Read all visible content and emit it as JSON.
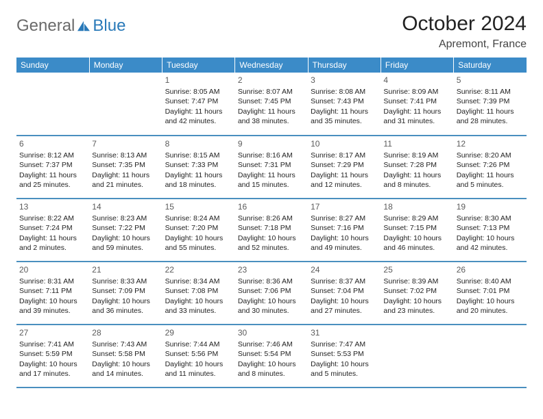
{
  "brand": {
    "general": "General",
    "blue": "Blue"
  },
  "title": "October 2024",
  "location": "Apremont, France",
  "day_headers": [
    "Sunday",
    "Monday",
    "Tuesday",
    "Wednesday",
    "Thursday",
    "Friday",
    "Saturday"
  ],
  "colors": {
    "header_bg": "#3b8bc8",
    "row_divider": "#4a8fbf",
    "logo_blue": "#2a7ab9",
    "logo_gray": "#6a6a6a"
  },
  "weeks": [
    [
      null,
      null,
      {
        "n": "1",
        "sr": "8:05 AM",
        "ss": "7:47 PM",
        "dl": "11 hours and 42 minutes."
      },
      {
        "n": "2",
        "sr": "8:07 AM",
        "ss": "7:45 PM",
        "dl": "11 hours and 38 minutes."
      },
      {
        "n": "3",
        "sr": "8:08 AM",
        "ss": "7:43 PM",
        "dl": "11 hours and 35 minutes."
      },
      {
        "n": "4",
        "sr": "8:09 AM",
        "ss": "7:41 PM",
        "dl": "11 hours and 31 minutes."
      },
      {
        "n": "5",
        "sr": "8:11 AM",
        "ss": "7:39 PM",
        "dl": "11 hours and 28 minutes."
      }
    ],
    [
      {
        "n": "6",
        "sr": "8:12 AM",
        "ss": "7:37 PM",
        "dl": "11 hours and 25 minutes."
      },
      {
        "n": "7",
        "sr": "8:13 AM",
        "ss": "7:35 PM",
        "dl": "11 hours and 21 minutes."
      },
      {
        "n": "8",
        "sr": "8:15 AM",
        "ss": "7:33 PM",
        "dl": "11 hours and 18 minutes."
      },
      {
        "n": "9",
        "sr": "8:16 AM",
        "ss": "7:31 PM",
        "dl": "11 hours and 15 minutes."
      },
      {
        "n": "10",
        "sr": "8:17 AM",
        "ss": "7:29 PM",
        "dl": "11 hours and 12 minutes."
      },
      {
        "n": "11",
        "sr": "8:19 AM",
        "ss": "7:28 PM",
        "dl": "11 hours and 8 minutes."
      },
      {
        "n": "12",
        "sr": "8:20 AM",
        "ss": "7:26 PM",
        "dl": "11 hours and 5 minutes."
      }
    ],
    [
      {
        "n": "13",
        "sr": "8:22 AM",
        "ss": "7:24 PM",
        "dl": "11 hours and 2 minutes."
      },
      {
        "n": "14",
        "sr": "8:23 AM",
        "ss": "7:22 PM",
        "dl": "10 hours and 59 minutes."
      },
      {
        "n": "15",
        "sr": "8:24 AM",
        "ss": "7:20 PM",
        "dl": "10 hours and 55 minutes."
      },
      {
        "n": "16",
        "sr": "8:26 AM",
        "ss": "7:18 PM",
        "dl": "10 hours and 52 minutes."
      },
      {
        "n": "17",
        "sr": "8:27 AM",
        "ss": "7:16 PM",
        "dl": "10 hours and 49 minutes."
      },
      {
        "n": "18",
        "sr": "8:29 AM",
        "ss": "7:15 PM",
        "dl": "10 hours and 46 minutes."
      },
      {
        "n": "19",
        "sr": "8:30 AM",
        "ss": "7:13 PM",
        "dl": "10 hours and 42 minutes."
      }
    ],
    [
      {
        "n": "20",
        "sr": "8:31 AM",
        "ss": "7:11 PM",
        "dl": "10 hours and 39 minutes."
      },
      {
        "n": "21",
        "sr": "8:33 AM",
        "ss": "7:09 PM",
        "dl": "10 hours and 36 minutes."
      },
      {
        "n": "22",
        "sr": "8:34 AM",
        "ss": "7:08 PM",
        "dl": "10 hours and 33 minutes."
      },
      {
        "n": "23",
        "sr": "8:36 AM",
        "ss": "7:06 PM",
        "dl": "10 hours and 30 minutes."
      },
      {
        "n": "24",
        "sr": "8:37 AM",
        "ss": "7:04 PM",
        "dl": "10 hours and 27 minutes."
      },
      {
        "n": "25",
        "sr": "8:39 AM",
        "ss": "7:02 PM",
        "dl": "10 hours and 23 minutes."
      },
      {
        "n": "26",
        "sr": "8:40 AM",
        "ss": "7:01 PM",
        "dl": "10 hours and 20 minutes."
      }
    ],
    [
      {
        "n": "27",
        "sr": "7:41 AM",
        "ss": "5:59 PM",
        "dl": "10 hours and 17 minutes."
      },
      {
        "n": "28",
        "sr": "7:43 AM",
        "ss": "5:58 PM",
        "dl": "10 hours and 14 minutes."
      },
      {
        "n": "29",
        "sr": "7:44 AM",
        "ss": "5:56 PM",
        "dl": "10 hours and 11 minutes."
      },
      {
        "n": "30",
        "sr": "7:46 AM",
        "ss": "5:54 PM",
        "dl": "10 hours and 8 minutes."
      },
      {
        "n": "31",
        "sr": "7:47 AM",
        "ss": "5:53 PM",
        "dl": "10 hours and 5 minutes."
      },
      null,
      null
    ]
  ],
  "labels": {
    "sunrise": "Sunrise:",
    "sunset": "Sunset:",
    "daylight": "Daylight:"
  }
}
